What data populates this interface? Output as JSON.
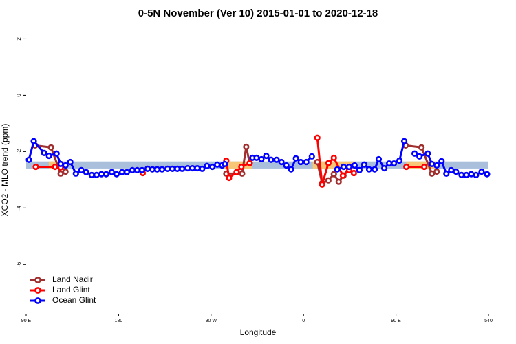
{
  "chart_data": {
    "type": "line",
    "title": "0-5N November (Ver 10)   2015-01-01 to 2020-12-18",
    "x_label": "Longitude",
    "y_label": "XCO2 - MLO trend (ppm)",
    "xlim": [
      90,
      540
    ],
    "ylim": [
      -7.75,
      2.45
    ],
    "xticks": [
      {
        "value": 90,
        "label": "90 E"
      },
      180,
      {
        "value": 270,
        "label": "90 W"
      },
      {
        "value": 360,
        "label": "0"
      },
      {
        "value": 450,
        "label": "90 E"
      },
      540
    ],
    "yticks": [
      -6,
      -4,
      -2,
      0,
      2
    ],
    "legend": "bottom-left",
    "band": {
      "ylim": [
        -2.6,
        -2.35
      ],
      "color": "#a9bfdc"
    },
    "land_band": {
      "color": "#f7c777",
      "xranges": [
        [
          112,
          128
        ],
        [
          283,
          310
        ],
        [
          369,
          410
        ],
        [
          460,
          490
        ]
      ]
    },
    "series": [
      {
        "name": "Land Nadir",
        "color": "#a0302f",
        "x": [
          98.7,
          114.2,
          123.6,
          128.3,
          null,
          284.8,
          300.2,
          304.2,
          307.6,
          null,
          373.4,
          378.1,
          384.2,
          389.5,
          394.2,
          398.9,
          405.0,
          null,
          459.4,
          474.8,
          484.9,
          489.6
        ],
        "values": [
          -1.78,
          -1.85,
          -2.78,
          -2.71,
          null,
          -2.78,
          -2.78,
          -1.83,
          -2.41,
          null,
          -2.37,
          -3.12,
          -3.02,
          -2.8,
          -3.07,
          -2.85,
          -2.54,
          null,
          -1.78,
          -1.85,
          -2.78,
          -2.71
        ]
      },
      {
        "name": "Land Glint",
        "color": "#ff0000",
        "x": [
          99.4,
          118.2,
          123.6,
          null,
          203.5,
          null,
          284.8,
          287.5,
          294.8,
          299.5,
          307.6,
          null,
          373.4,
          378.1,
          384.2,
          389.5,
          398.3,
          404.3,
          409.0,
          null,
          460.1,
          477.5
        ],
        "values": [
          -2.54,
          -2.54,
          -2.56,
          null,
          -2.76,
          null,
          -2.32,
          -2.93,
          -2.73,
          -2.54,
          -2.41,
          null,
          -1.51,
          -3.17,
          -2.41,
          -2.22,
          -2.85,
          -2.66,
          -2.76,
          null,
          -2.54,
          -2.54
        ]
      },
      {
        "name": "Ocean Glint",
        "color": "#0000ff",
        "x": [
          92.7,
          97.4,
          107.5,
          112.2,
          119.6,
          123.6,
          128.3,
          133.0,
          138.4,
          143.7,
          148.4,
          153.8,
          158.5,
          163.2,
          167.9,
          173.3,
          178.0,
          183.4,
          188.1,
          193.4,
          198.1,
          202.8,
          208.2,
          212.9,
          217.6,
          222.3,
          227.7,
          232.4,
          237.1,
          241.8,
          247.2,
          251.9,
          256.6,
          261.3,
          266.0,
          271.3,
          276.0,
          280.7,
          283.4,
          null,
          310.3,
          314.3,
          319.0,
          323.7,
          328.4,
          333.8,
          338.5,
          343.2,
          347.9,
          352.6,
          357.3,
          362.7,
          368.1,
          null,
          392.9,
          399.0,
          404.3,
          409.7,
          414.4,
          419.1,
          423.8,
          429.2,
          433.2,
          438.6,
          443.3,
          448.0,
          453.3,
          458.0,
          null,
          468.1,
          472.8,
          480.9,
          484.9,
          489.6,
          494.3,
          499.0,
          503.7,
          508.4,
          513.8,
          518.5,
          523.2,
          527.9,
          533.3,
          538.6
        ],
        "values": [
          -2.29,
          -1.63,
          -2.05,
          -2.15,
          -2.07,
          -2.44,
          -2.49,
          -2.37,
          -2.78,
          -2.66,
          -2.73,
          -2.83,
          -2.83,
          -2.8,
          -2.8,
          -2.73,
          -2.8,
          -2.73,
          -2.73,
          -2.66,
          -2.66,
          -2.66,
          -2.61,
          -2.63,
          -2.63,
          -2.63,
          -2.61,
          -2.61,
          -2.61,
          -2.61,
          -2.59,
          -2.59,
          -2.59,
          -2.61,
          -2.51,
          -2.54,
          -2.46,
          -2.49,
          -2.44,
          null,
          -2.22,
          -2.22,
          -2.27,
          -2.15,
          -2.29,
          -2.29,
          -2.37,
          -2.49,
          -2.63,
          -2.24,
          -2.37,
          -2.37,
          -2.17,
          null,
          -2.63,
          -2.54,
          -2.54,
          -2.49,
          -2.66,
          -2.46,
          -2.63,
          -2.63,
          -2.27,
          -2.59,
          -2.42,
          -2.42,
          -2.32,
          -1.63,
          null,
          -2.07,
          -2.17,
          -2.07,
          -2.44,
          -2.49,
          -2.34,
          -2.78,
          -2.66,
          -2.71,
          -2.83,
          -2.83,
          -2.8,
          -2.83,
          -2.71,
          -2.8
        ]
      }
    ]
  }
}
